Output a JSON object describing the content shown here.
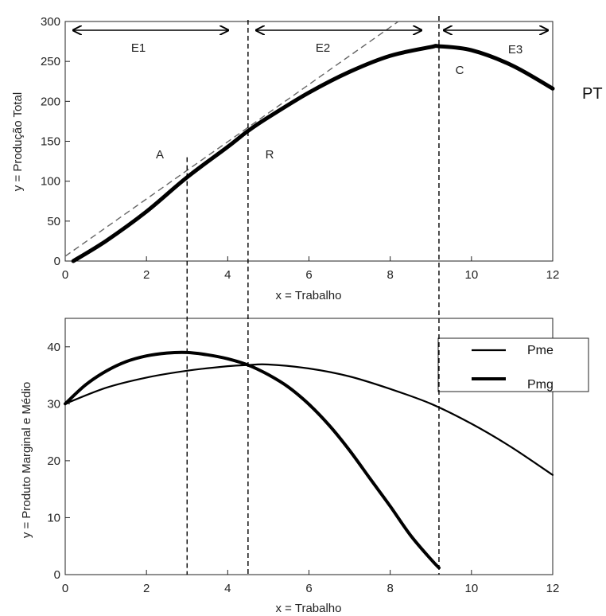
{
  "chart_data": [
    {
      "type": "line",
      "xlabel": "x = Trabalho",
      "ylabel": "y = Produção Total",
      "xlim": [
        0,
        12
      ],
      "ylim": [
        0,
        300
      ],
      "xticks": [
        0,
        2,
        4,
        6,
        8,
        10,
        12
      ],
      "yticks": [
        0,
        50,
        100,
        150,
        200,
        250,
        300
      ],
      "grid": false,
      "series": [
        {
          "name": "PT",
          "x": [
            0.2,
            1,
            2,
            3,
            4,
            4.5,
            5,
            6,
            7,
            8,
            9,
            9.2,
            10,
            11,
            12
          ],
          "y": [
            0,
            25,
            62,
            105,
            143,
            163,
            180,
            211,
            237,
            257,
            268,
            269,
            264,
            245,
            216
          ]
        },
        {
          "name": "",
          "style": "dashed",
          "x": [
            0,
            8.2
          ],
          "y": [
            6,
            300
          ]
        }
      ],
      "annotations": [
        "A",
        "R",
        "C",
        "E1",
        "E2",
        "E3"
      ],
      "vlines": [
        3,
        4.5,
        9.2
      ]
    },
    {
      "type": "line",
      "xlabel": "x = Trabalho",
      "ylabel": "y = Produto Marginal e Médio",
      "xlim": [
        0,
        12
      ],
      "ylim": [
        0,
        45
      ],
      "xticks": [
        0,
        2,
        4,
        6,
        8,
        10,
        12
      ],
      "yticks": [
        0,
        10,
        20,
        30,
        40
      ],
      "grid": false,
      "legend": "top-right",
      "series": [
        {
          "name": "Pme",
          "x": [
            0,
            1,
            2,
            3,
            4,
            4.5,
            5,
            6,
            7,
            8,
            9,
            10,
            11,
            12
          ],
          "y": [
            30,
            32.8,
            34.6,
            35.8,
            36.6,
            36.8,
            36.9,
            36.2,
            34.8,
            32.6,
            30,
            26.5,
            22.3,
            17.5
          ]
        },
        {
          "name": "Pmg",
          "x": [
            0,
            0.5,
            1,
            1.5,
            2,
            2.5,
            3,
            3.5,
            4,
            4.5,
            5,
            5.5,
            6,
            6.5,
            7,
            7.5,
            8,
            8.5,
            9,
            9.2
          ],
          "y": [
            30,
            33.3,
            35.7,
            37.4,
            38.4,
            38.9,
            39,
            38.6,
            37.9,
            36.8,
            35.1,
            32.9,
            29.9,
            26.2,
            21.8,
            16.9,
            12,
            6.9,
            2.7,
            1.2
          ]
        }
      ],
      "vlines": [
        3,
        4.5,
        9.2
      ]
    }
  ],
  "colors": {
    "line": "#000000",
    "dashed": "#666666",
    "text": "#222222"
  }
}
